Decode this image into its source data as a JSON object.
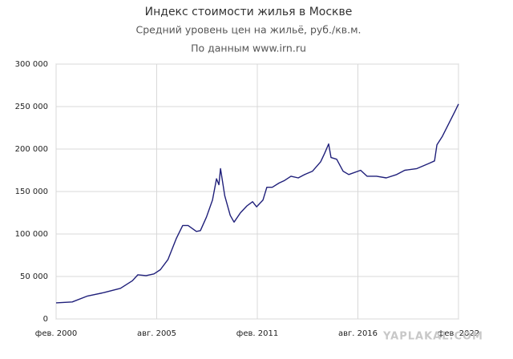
{
  "chart_data": {
    "type": "line",
    "title": "Индекс стоимости жилья в Москве",
    "subtitle": "Средний уровень цен на жильё, руб./кв.м.",
    "note": "По данным www.irn.ru",
    "watermark": "YAPLAKAL.COM",
    "x": [
      2000.08,
      2000.96,
      2001.8,
      2002.7,
      2003.6,
      2004.25,
      2004.55,
      2005.0,
      2005.43,
      2005.78,
      2006.2,
      2006.66,
      2007.0,
      2007.3,
      2007.75,
      2007.97,
      2008.3,
      2008.63,
      2008.85,
      2008.98,
      2009.07,
      2009.3,
      2009.6,
      2009.81,
      2010.16,
      2010.51,
      2010.82,
      2011.04,
      2011.39,
      2011.6,
      2011.9,
      2012.27,
      2012.57,
      2012.92,
      2013.32,
      2013.67,
      2014.1,
      2014.54,
      2014.76,
      2014.98,
      2015.11,
      2015.42,
      2015.77,
      2016.08,
      2016.73,
      2017.08,
      2017.6,
      2018.13,
      2018.7,
      2019.14,
      2019.8,
      2020.46,
      2020.77,
      2020.9,
      2021.2,
      2021.55,
      2021.9,
      2022.08
    ],
    "series": [
      {
        "color": "#1f1f7a",
        "values": [
          19000,
          20000,
          27000,
          31000,
          36000,
          45000,
          52000,
          51000,
          53000,
          58000,
          70000,
          95000,
          110000,
          110000,
          103000,
          104000,
          120000,
          140000,
          165000,
          158000,
          177000,
          145000,
          122000,
          114000,
          125000,
          133000,
          138000,
          132000,
          140000,
          155000,
          155000,
          160000,
          163000,
          168000,
          166000,
          170000,
          174000,
          185000,
          195000,
          206000,
          190000,
          188000,
          174000,
          170000,
          175000,
          168000,
          168000,
          166000,
          170000,
          175000,
          177000,
          183000,
          186000,
          205000,
          215000,
          230000,
          245000,
          253000
        ]
      }
    ],
    "xlim": [
      2000.08,
      2022.08
    ],
    "xticks": [
      {
        "value": 2000.08,
        "label": "фев. 2000"
      },
      {
        "value": 2005.58,
        "label": "авг. 2005"
      },
      {
        "value": 2011.08,
        "label": "фев. 2011"
      },
      {
        "value": 2016.58,
        "label": "авг. 2016"
      },
      {
        "value": 2022.08,
        "label": "фев. 2022"
      }
    ],
    "ylim": [
      0,
      300000
    ],
    "yticks": [
      0,
      {
        "value": 50000,
        "label": "50 000"
      },
      {
        "value": 100000,
        "label": "100 000"
      },
      {
        "value": 150000,
        "label": "150 000"
      },
      {
        "value": 200000,
        "label": "200 000"
      },
      {
        "value": 250000,
        "label": "250 000"
      },
      {
        "value": 300000,
        "label": "300 000"
      }
    ],
    "grid": true
  }
}
